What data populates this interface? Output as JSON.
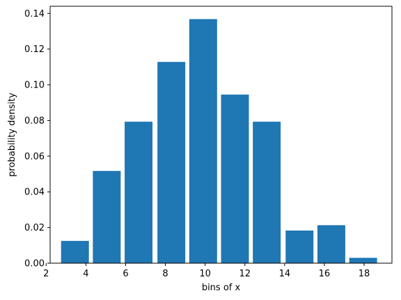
{
  "chart_data": {
    "type": "bar",
    "title": "",
    "xlabel": "bins of x",
    "ylabel": "probability density",
    "bar_color": "#1f77b4",
    "grid": false,
    "legend": "none",
    "xlim": [
      2.2,
      19.4
    ],
    "ylim": [
      0,
      0.144
    ],
    "xticks": [
      2,
      4,
      6,
      8,
      10,
      12,
      14,
      16,
      18
    ],
    "yticks": [
      0.0,
      0.02,
      0.04,
      0.06,
      0.08,
      0.1,
      0.12,
      0.14
    ],
    "ytick_labels": [
      "0.00",
      "0.02",
      "0.04",
      "0.06",
      "0.08",
      "0.10",
      "0.12",
      "0.14"
    ],
    "bins": [
      {
        "x_start": 2.75,
        "x_end": 4.15,
        "value": 0.0125
      },
      {
        "x_start": 4.35,
        "x_end": 5.75,
        "value": 0.0517
      },
      {
        "x_start": 5.95,
        "x_end": 7.35,
        "value": 0.0793
      },
      {
        "x_start": 7.6,
        "x_end": 9.0,
        "value": 0.1128
      },
      {
        "x_start": 9.2,
        "x_end": 10.6,
        "value": 0.1368
      },
      {
        "x_start": 10.8,
        "x_end": 12.2,
        "value": 0.0945
      },
      {
        "x_start": 12.4,
        "x_end": 13.8,
        "value": 0.0793
      },
      {
        "x_start": 14.05,
        "x_end": 15.45,
        "value": 0.0183
      },
      {
        "x_start": 15.65,
        "x_end": 17.05,
        "value": 0.0213
      },
      {
        "x_start": 17.25,
        "x_end": 18.65,
        "value": 0.003
      }
    ]
  }
}
